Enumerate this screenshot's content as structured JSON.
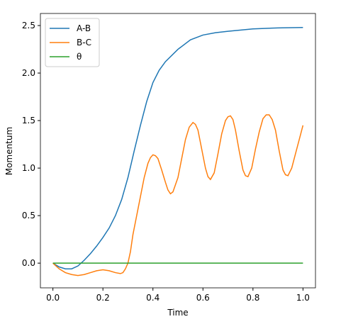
{
  "chart_data": {
    "type": "line",
    "xlabel": "Time",
    "ylabel": "Momentum",
    "xlim": [
      -0.05,
      1.05
    ],
    "ylim": [
      -0.26,
      2.627
    ],
    "xticks": [
      {
        "value": 0,
        "label": "0.0"
      },
      {
        "value": 0.2,
        "label": "0.2"
      },
      {
        "value": 0.4,
        "label": "0.4"
      },
      {
        "value": 0.6,
        "label": "0.6"
      },
      {
        "value": 0.8,
        "label": "0.8"
      },
      {
        "value": 1,
        "label": "1.0"
      }
    ],
    "yticks": [
      {
        "value": 0,
        "label": "0.0"
      },
      {
        "value": 0.5,
        "label": "0.5"
      },
      {
        "value": 1,
        "label": "1.0"
      },
      {
        "value": 1.5,
        "label": "1.5"
      },
      {
        "value": 2,
        "label": "2.0"
      },
      {
        "value": 2.5,
        "label": "2.5"
      }
    ],
    "legend": "upper left",
    "series": [
      {
        "name": "A-B",
        "color": "#1f77b4",
        "x": [
          0,
          0.025,
          0.05,
          0.075,
          0.1,
          0.125,
          0.15,
          0.175,
          0.2,
          0.225,
          0.25,
          0.275,
          0.3,
          0.325,
          0.35,
          0.375,
          0.4,
          0.425,
          0.45,
          0.5,
          0.55,
          0.6,
          0.65,
          0.7,
          0.8,
          0.9,
          1.0
        ],
        "values": [
          0,
          -0.04,
          -0.06,
          -0.06,
          -0.03,
          0.03,
          0.1,
          0.18,
          0.27,
          0.37,
          0.5,
          0.67,
          0.9,
          1.18,
          1.45,
          1.7,
          1.9,
          2.03,
          2.12,
          2.25,
          2.35,
          2.4,
          2.425,
          2.44,
          2.465,
          2.475,
          2.48
        ]
      },
      {
        "name": "B-C",
        "color": "#ff7f0e",
        "x": [
          0,
          0.025,
          0.05,
          0.075,
          0.1,
          0.125,
          0.15,
          0.175,
          0.2,
          0.225,
          0.25,
          0.27,
          0.28,
          0.29,
          0.3,
          0.31,
          0.32,
          0.335,
          0.35,
          0.365,
          0.38,
          0.39,
          0.4,
          0.41,
          0.42,
          0.435,
          0.45,
          0.46,
          0.47,
          0.48,
          0.5,
          0.515,
          0.53,
          0.545,
          0.56,
          0.57,
          0.58,
          0.595,
          0.61,
          0.62,
          0.63,
          0.645,
          0.66,
          0.675,
          0.69,
          0.7,
          0.71,
          0.72,
          0.73,
          0.745,
          0.76,
          0.77,
          0.78,
          0.795,
          0.81,
          0.825,
          0.84,
          0.853,
          0.865,
          0.877,
          0.89,
          0.905,
          0.92,
          0.93,
          0.94,
          0.955,
          0.97,
          0.985,
          1.0
        ],
        "values": [
          0,
          -0.06,
          -0.1,
          -0.12,
          -0.13,
          -0.12,
          -0.1,
          -0.08,
          -0.07,
          -0.08,
          -0.1,
          -0.11,
          -0.1,
          -0.06,
          0.0,
          0.12,
          0.3,
          0.5,
          0.7,
          0.9,
          1.05,
          1.11,
          1.14,
          1.13,
          1.1,
          0.98,
          0.85,
          0.77,
          0.73,
          0.75,
          0.9,
          1.1,
          1.3,
          1.43,
          1.48,
          1.46,
          1.4,
          1.2,
          1.0,
          0.91,
          0.88,
          0.95,
          1.15,
          1.36,
          1.5,
          1.54,
          1.55,
          1.51,
          1.4,
          1.18,
          0.98,
          0.92,
          0.91,
          1.0,
          1.2,
          1.38,
          1.52,
          1.56,
          1.56,
          1.51,
          1.4,
          1.18,
          0.98,
          0.93,
          0.92,
          1.0,
          1.15,
          1.3,
          1.45
        ]
      },
      {
        "name": "θ",
        "color": "#2ca02c",
        "x": [
          0,
          1.0
        ],
        "values": [
          0,
          0
        ]
      }
    ]
  }
}
